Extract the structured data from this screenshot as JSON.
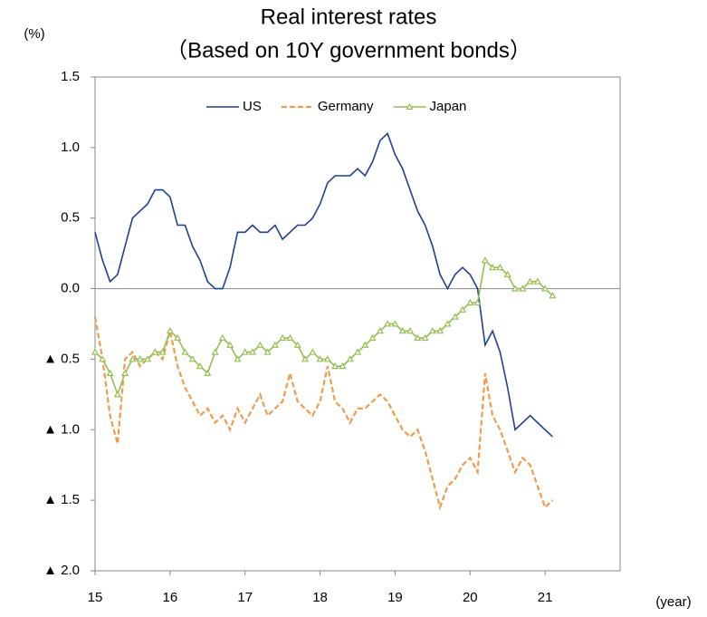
{
  "chart_data": {
    "type": "line",
    "title": "Real interest rates",
    "subtitle": "（Based on 10Y government bonds）",
    "y_label": "(%)",
    "x_label": "(year)",
    "x": [
      15,
      15.1,
      15.2,
      15.3,
      15.4,
      15.5,
      15.6,
      15.7,
      15.8,
      15.9,
      16,
      16.1,
      16.2,
      16.3,
      16.4,
      16.5,
      16.6,
      16.7,
      16.8,
      16.9,
      17,
      17.1,
      17.2,
      17.3,
      17.4,
      17.5,
      17.6,
      17.7,
      17.8,
      17.9,
      18,
      18.1,
      18.2,
      18.3,
      18.4,
      18.5,
      18.6,
      18.7,
      18.8,
      18.9,
      19,
      19.1,
      19.2,
      19.3,
      19.4,
      19.5,
      19.6,
      19.7,
      19.8,
      19.9,
      20,
      20.1,
      20.2,
      20.3,
      20.4,
      20.5,
      20.6,
      20.7,
      20.8,
      20.9,
      21,
      21.1
    ],
    "series": [
      {
        "name": "US",
        "color": "#1f3f99",
        "dash": false,
        "marker": false,
        "values": [
          0.4,
          0.2,
          0.05,
          0.1,
          0.3,
          0.5,
          0.55,
          0.6,
          0.7,
          0.7,
          0.65,
          0.45,
          0.45,
          0.3,
          0.2,
          0.05,
          0,
          0,
          0.15,
          0.4,
          0.4,
          0.45,
          0.4,
          0.4,
          0.45,
          0.35,
          0.4,
          0.45,
          0.45,
          0.5,
          0.6,
          0.75,
          0.8,
          0.8,
          0.8,
          0.85,
          0.8,
          0.9,
          1.05,
          1.1,
          0.95,
          0.85,
          0.7,
          0.55,
          0.45,
          0.3,
          0.1,
          0,
          0.1,
          0.15,
          0.1,
          0,
          -0.4,
          -0.3,
          -0.45,
          -0.7,
          -1,
          -0.95,
          -0.9,
          -0.95,
          -1,
          -1.05
        ]
      },
      {
        "name": "Germany",
        "color": "#f39a4a",
        "dash": true,
        "marker": false,
        "values": [
          -0.2,
          -0.5,
          -0.9,
          -1.1,
          -0.5,
          -0.45,
          -0.55,
          -0.5,
          -0.45,
          -0.5,
          -0.3,
          -0.55,
          -0.7,
          -0.8,
          -0.9,
          -0.85,
          -0.95,
          -0.9,
          -1,
          -0.85,
          -0.95,
          -0.85,
          -0.75,
          -0.9,
          -0.85,
          -0.8,
          -0.6,
          -0.8,
          -0.85,
          -0.9,
          -0.8,
          -0.55,
          -0.8,
          -0.85,
          -0.95,
          -0.85,
          -0.85,
          -0.8,
          -0.75,
          -0.8,
          -0.9,
          -1,
          -1.05,
          -1,
          -1.15,
          -1.35,
          -1.55,
          -1.4,
          -1.35,
          -1.25,
          -1.2,
          -1.3,
          -0.6,
          -0.9,
          -1,
          -1.15,
          -1.3,
          -1.2,
          -1.25,
          -1.4,
          -1.55,
          -1.5
        ]
      },
      {
        "name": "Japan",
        "color": "#92c050",
        "dash": false,
        "marker": true,
        "values": [
          -0.45,
          -0.5,
          -0.6,
          -0.75,
          -0.6,
          -0.5,
          -0.5,
          -0.5,
          -0.45,
          -0.45,
          -0.3,
          -0.35,
          -0.45,
          -0.5,
          -0.55,
          -0.6,
          -0.45,
          -0.35,
          -0.4,
          -0.5,
          -0.45,
          -0.45,
          -0.4,
          -0.45,
          -0.4,
          -0.35,
          -0.35,
          -0.4,
          -0.5,
          -0.45,
          -0.5,
          -0.5,
          -0.55,
          -0.55,
          -0.5,
          -0.45,
          -0.4,
          -0.35,
          -0.3,
          -0.25,
          -0.25,
          -0.3,
          -0.3,
          -0.35,
          -0.35,
          -0.3,
          -0.3,
          -0.25,
          -0.2,
          -0.15,
          -0.1,
          -0.1,
          0.2,
          0.15,
          0.15,
          0.1,
          0,
          0,
          0.05,
          0.05,
          0,
          -0.05
        ]
      }
    ],
    "xlim": [
      15,
      22
    ],
    "xticks": [
      15,
      16,
      17,
      18,
      19,
      20,
      21
    ],
    "ylim": [
      -2,
      1.5
    ],
    "yticks": [
      {
        "value": -2,
        "label": "▲ 2.0"
      },
      {
        "value": -1.5,
        "label": "▲ 1.5"
      },
      {
        "value": -1,
        "label": "▲ 1.0"
      },
      {
        "value": -0.5,
        "label": "▲ 0.5"
      },
      {
        "value": 0,
        "label": "0.0"
      },
      {
        "value": 0.5,
        "label": "0.5"
      },
      {
        "value": 1,
        "label": "1.0"
      },
      {
        "value": 1.5,
        "label": "1.5"
      }
    ],
    "zero_line": true,
    "legend": "top"
  }
}
